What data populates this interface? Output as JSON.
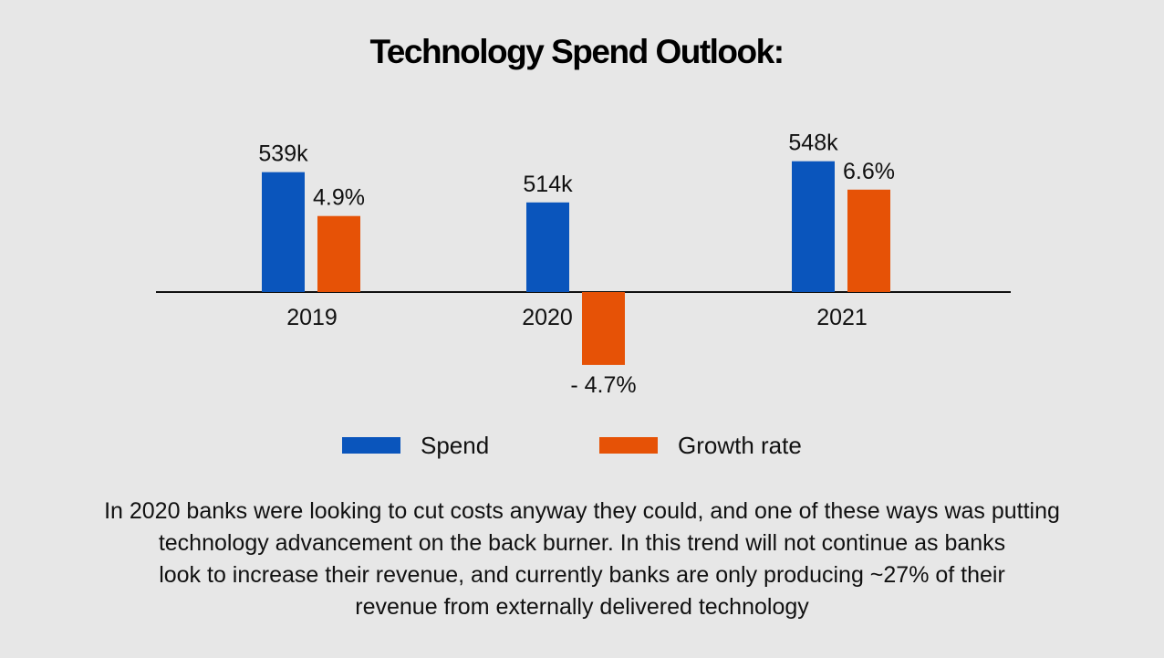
{
  "chart_data": {
    "type": "bar",
    "title": "Technology Spend Outlook:",
    "categories": [
      "2019",
      "2020",
      "2021"
    ],
    "series": [
      {
        "name": "Spend",
        "color": "#0a55bc",
        "values": [
          539,
          514,
          548
        ],
        "labels": [
          "539k",
          "514k",
          "548k"
        ]
      },
      {
        "name": "Growth rate",
        "color": "#e65206",
        "values": [
          4.9,
          -4.7,
          6.6
        ],
        "labels": [
          "4.9%",
          "- 4.7%",
          "6.6%"
        ]
      }
    ],
    "xlabel": "",
    "ylabel": "",
    "grid": false,
    "legend_position": "bottom"
  },
  "caption": {
    "lines": [
      "In 2020 banks were looking to cut costs anyway they could, and one of these ways was putting",
      "technology advancement on the back burner. In this trend will not continue as banks",
      "look to increase their revenue, and currently banks are only producing ~27% of their",
      "revenue from externally delivered technology"
    ]
  }
}
